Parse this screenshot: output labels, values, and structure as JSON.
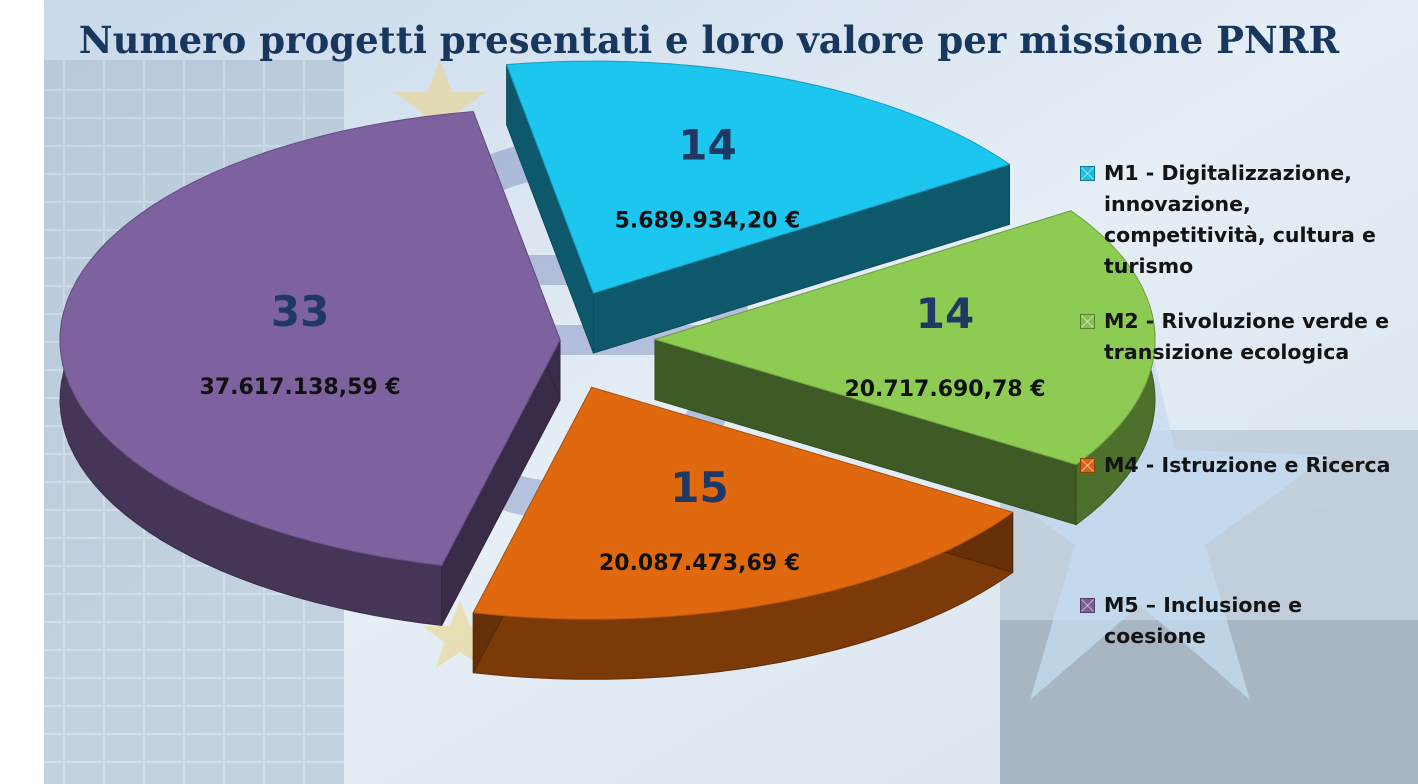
{
  "title": "Numero progetti presentati  e loro valore per missione PNRR",
  "chart_data": {
    "type": "pie",
    "title": "Numero progetti presentati  e loro valore per missione PNRR",
    "series": [
      {
        "name": "M1 - Digitalizzazione, innovazione, competitività, cultura e turismo",
        "count": 14,
        "count_label": "14",
        "value_label": "5.689.934,20 €",
        "color": "#1cc6ee"
      },
      {
        "name": "M2 - Rivoluzione verde e transizione ecologica",
        "count": 14,
        "count_label": "14",
        "value_label": "20.717.690,78 €",
        "color": "#8dcb52"
      },
      {
        "name": "M4 - Istruzione e Ricerca",
        "count": 15,
        "count_label": "15",
        "value_label": "20.087.473,69 €",
        "color": "#e0690f"
      },
      {
        "name": "M5  – Inclusione e coesione",
        "count": 33,
        "count_label": "33",
        "value_label": "37.617.138,59 €",
        "color": "#7e62a0"
      }
    ],
    "legend_position": "right"
  },
  "legend": [
    {
      "label": "M1 - Digitalizzazione, innovazione, competitività, cultura e turismo",
      "color": "#18bfe6"
    },
    {
      "label": "M2 - Rivoluzione verde e transizione ecologica",
      "color": "#86c34c"
    },
    {
      "label": "M4 - Istruzione e Ricerca",
      "color": "#d9650e"
    },
    {
      "label": "M5  – Inclusione e coesione",
      "color": "#7a5e9c"
    }
  ]
}
